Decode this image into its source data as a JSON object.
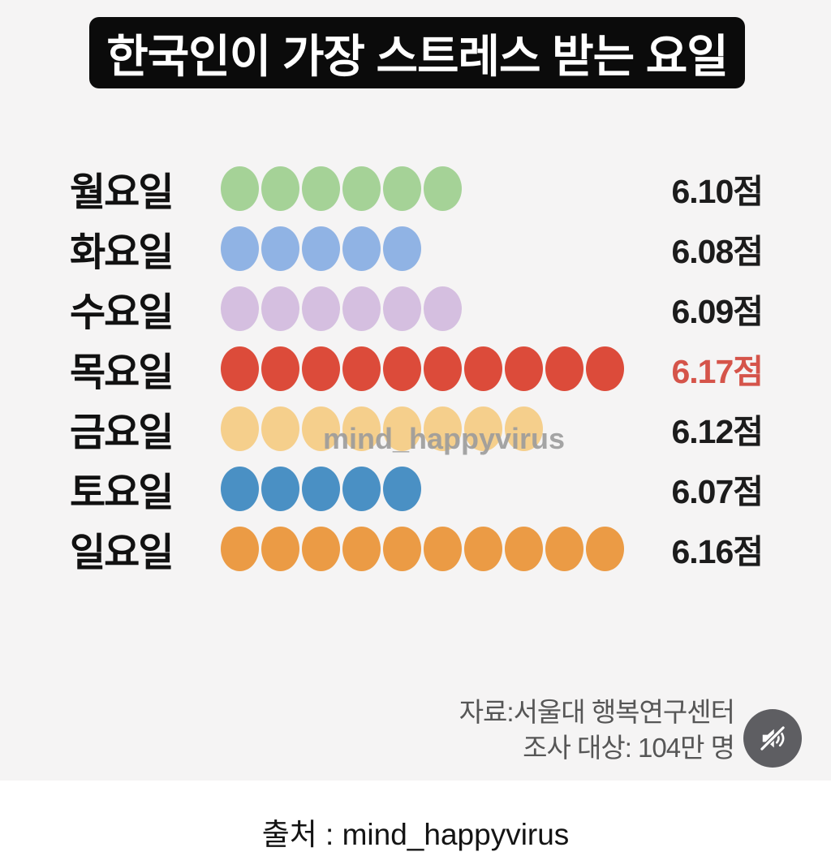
{
  "title": "한국인이 가장 스트레스 받는 요일",
  "chart_data": {
    "type": "bar",
    "variant": "dot-pictograph",
    "title": "한국인이 가장 스트레스 받는 요일",
    "categories": [
      "월요일",
      "화요일",
      "수요일",
      "목요일",
      "금요일",
      "토요일",
      "일요일"
    ],
    "values": [
      6.1,
      6.08,
      6.09,
      6.17,
      6.12,
      6.07,
      6.16
    ],
    "value_labels": [
      "6.10점",
      "6.08점",
      "6.09점",
      "6.17점",
      "6.12점",
      "6.07점",
      "6.16점"
    ],
    "dot_counts": [
      6,
      5,
      6,
      10,
      8,
      5,
      10
    ],
    "dot_colors": [
      "#a5d297",
      "#90b3e4",
      "#d5bfe0",
      "#dc4b3a",
      "#f5cf8c",
      "#4a90c4",
      "#eb9b45"
    ],
    "unit": "점",
    "highlight_index": 3,
    "highlight_color": "#d5544a",
    "legend": "none",
    "grid": "off"
  },
  "watermark": {
    "text": "mind_happyvirus"
  },
  "source": {
    "line1": "자료:서울대 행복연구센터",
    "line2": "조사 대상: 104만 명"
  },
  "caption": "출처 : mind_happyvirus",
  "icons": {
    "mute": "muted-speaker-icon"
  },
  "colors": {
    "poster_background": "#f5f4f4",
    "title_box": "#0b0b0b",
    "title_text": "#ffffff",
    "day_label": "#111111",
    "score_text": "#1c1c1c",
    "score_highlight": "#d5544a",
    "watermark": "#9c9c9c",
    "source_text": "#565656",
    "mute_button": "#5e5e62"
  }
}
